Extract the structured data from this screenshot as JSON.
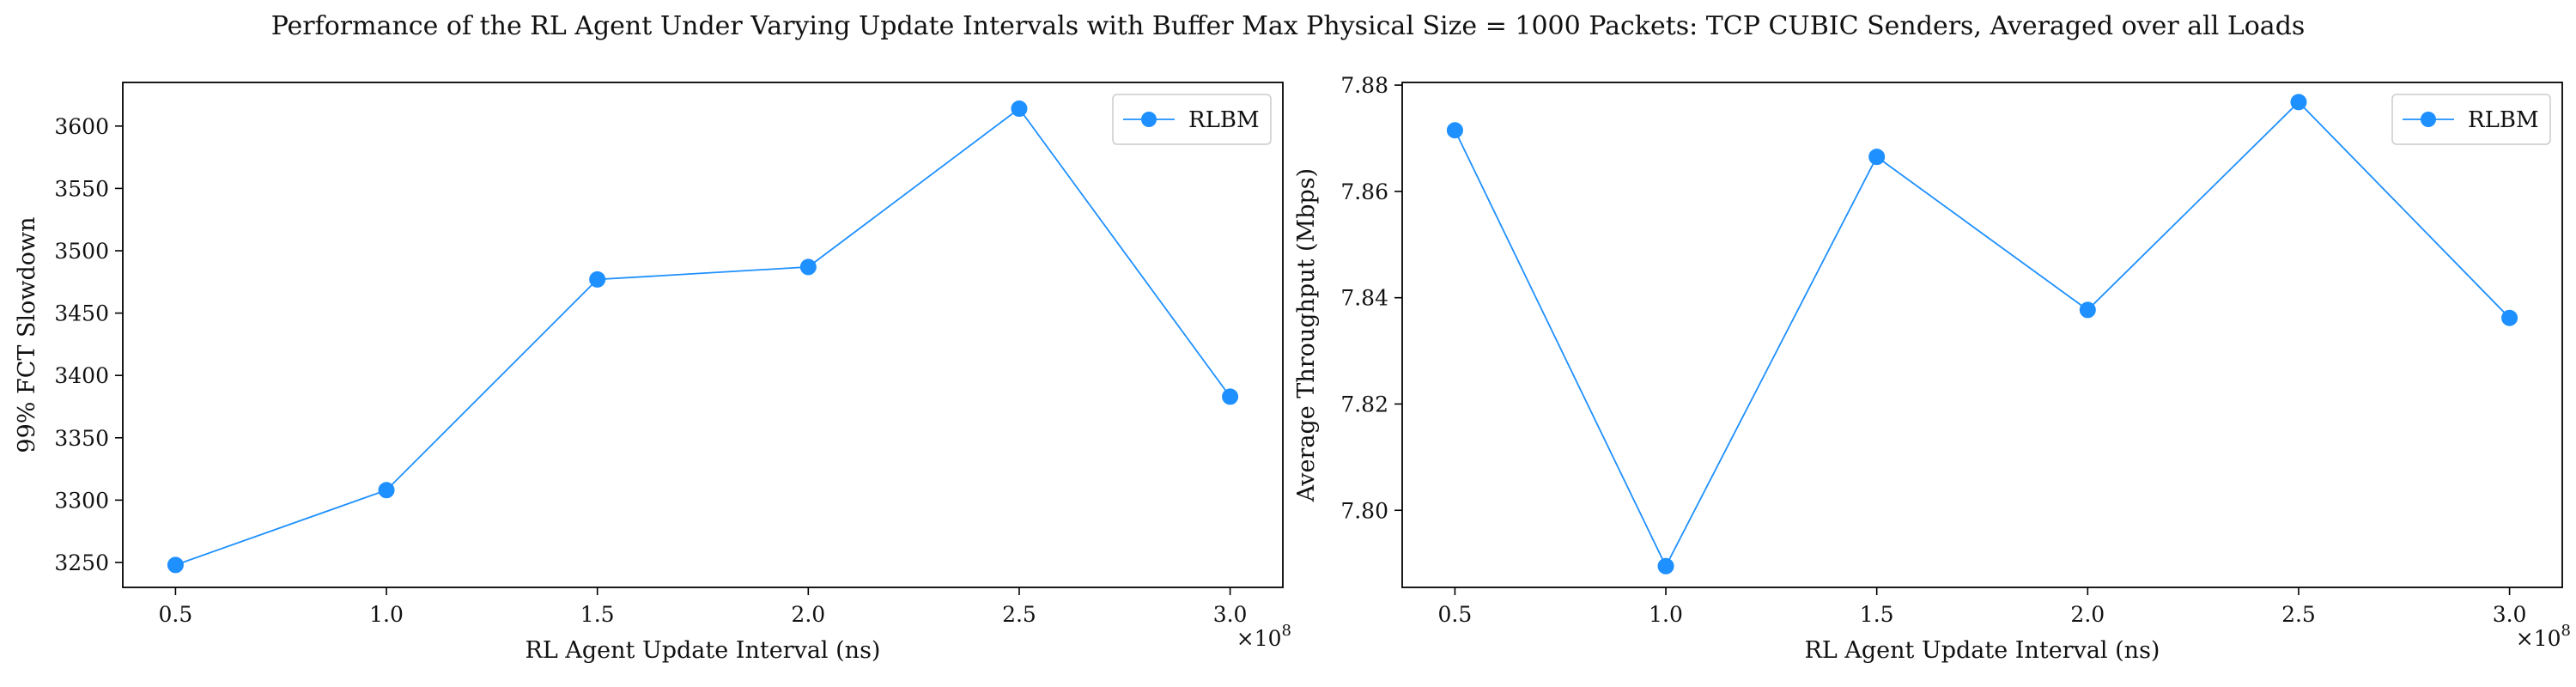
{
  "figure": {
    "title": "Performance of the RL Agent Under Varying Update Intervals with Buffer Max Physical Size = 1000 Packets: TCP CUBIC Senders, Averaged over all Loads"
  },
  "colors": {
    "series": "#1e90ff",
    "axes": "#000000",
    "background": "#ffffff"
  },
  "chart_data": [
    {
      "type": "line",
      "title": "",
      "xlabel": "RL Agent Update Interval (ns)",
      "ylabel": "99% FCT Slowdown",
      "x_scale_label": "×10",
      "x_scale_exp": "8",
      "x": [
        0.5,
        1.0,
        1.5,
        2.0,
        2.5,
        3.0
      ],
      "x_tick_values": [
        0.5,
        1.0,
        1.5,
        2.0,
        2.5,
        3.0
      ],
      "x_tick_labels": [
        "0.5",
        "1.0",
        "1.5",
        "2.0",
        "2.5",
        "3.0"
      ],
      "xlim": [
        0.375,
        3.125
      ],
      "series": [
        {
          "name": "RLBM",
          "values": [
            3248,
            3308,
            3477,
            3487,
            3614,
            3383
          ]
        }
      ],
      "y_tick_values": [
        3250,
        3300,
        3350,
        3400,
        3450,
        3500,
        3550,
        3600
      ],
      "y_tick_labels": [
        "3250",
        "3300",
        "3350",
        "3400",
        "3450",
        "3500",
        "3550",
        "3600"
      ],
      "ylim": [
        3230,
        3635
      ],
      "grid": false,
      "legend": "upper right"
    },
    {
      "type": "line",
      "title": "",
      "xlabel": "RL Agent Update Interval (ns)",
      "ylabel": "Average Throughput (Mbps)",
      "x_scale_label": "×10",
      "x_scale_exp": "8",
      "x": [
        0.5,
        1.0,
        1.5,
        2.0,
        2.5,
        3.0
      ],
      "x_tick_values": [
        0.5,
        1.0,
        1.5,
        2.0,
        2.5,
        3.0
      ],
      "x_tick_labels": [
        "0.5",
        "1.0",
        "1.5",
        "2.0",
        "2.5",
        "3.0"
      ],
      "xlim": [
        0.375,
        3.125
      ],
      "series": [
        {
          "name": "RLBM",
          "values": [
            7.8715,
            7.7895,
            7.8665,
            7.8377,
            7.8768,
            7.8362
          ]
        }
      ],
      "y_tick_values": [
        7.8,
        7.82,
        7.84,
        7.86,
        7.88
      ],
      "y_tick_labels": [
        "7.80",
        "7.82",
        "7.84",
        "7.86",
        "7.88"
      ],
      "ylim": [
        7.7855,
        7.8805
      ],
      "grid": false,
      "legend": "upper right"
    }
  ]
}
